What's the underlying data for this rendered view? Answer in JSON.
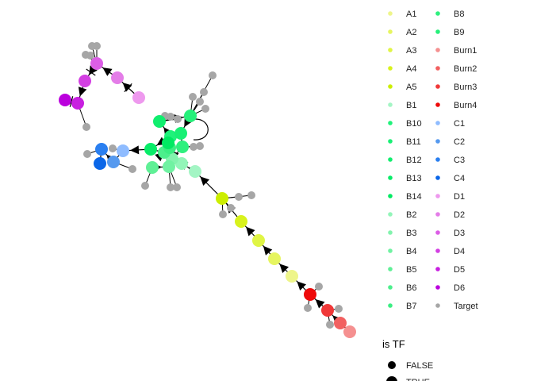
{
  "legend_color": {
    "columns": [
      [
        {
          "label": "A1",
          "color": "#eef58a"
        },
        {
          "label": "A2",
          "color": "#e6f560"
        },
        {
          "label": "A3",
          "color": "#e0f545"
        },
        {
          "label": "A4",
          "color": "#d8f21c"
        },
        {
          "label": "A5",
          "color": "#ccee00"
        },
        {
          "label": "B1",
          "color": "#a3f5c4"
        },
        {
          "label": "B10",
          "color": "#1ff27a"
        },
        {
          "label": "B11",
          "color": "#18f074"
        },
        {
          "label": "B12",
          "color": "#10ee6e"
        },
        {
          "label": "B13",
          "color": "#08ec68"
        },
        {
          "label": "B14",
          "color": "#00ea62"
        },
        {
          "label": "B2",
          "color": "#92f5b8"
        },
        {
          "label": "B3",
          "color": "#82f3ad"
        },
        {
          "label": "B4",
          "color": "#70f2a2"
        },
        {
          "label": "B5",
          "color": "#5ff096"
        },
        {
          "label": "B6",
          "color": "#4cef8c"
        },
        {
          "label": "B7",
          "color": "#3aee82"
        }
      ],
      [
        {
          "label": "B8",
          "color": "#2ef07e"
        },
        {
          "label": "B9",
          "color": "#26f07a"
        },
        {
          "label": "Burn1",
          "color": "#f59090"
        },
        {
          "label": "Burn2",
          "color": "#f26060"
        },
        {
          "label": "Burn3",
          "color": "#f03838"
        },
        {
          "label": "Burn4",
          "color": "#ee0a0a"
        },
        {
          "label": "C1",
          "color": "#8fbcff"
        },
        {
          "label": "C2",
          "color": "#5599ef"
        },
        {
          "label": "C3",
          "color": "#2a7ff0"
        },
        {
          "label": "C4",
          "color": "#0a66e8"
        },
        {
          "label": "D1",
          "color": "#ee99ee"
        },
        {
          "label": "D2",
          "color": "#e47de8"
        },
        {
          "label": "D3",
          "color": "#dc5ee6"
        },
        {
          "label": "D4",
          "color": "#d33fe2"
        },
        {
          "label": "D5",
          "color": "#c81fe0"
        },
        {
          "label": "D6",
          "color": "#bb00dd"
        },
        {
          "label": "Target",
          "color": "#a6a6a6"
        }
      ]
    ]
  },
  "legend_size": {
    "title": "is TF",
    "items": [
      "FALSE",
      "TRUE"
    ]
  },
  "network": {
    "edge_color": "#000000",
    "target_color": "#a6a6a6"
  }
}
